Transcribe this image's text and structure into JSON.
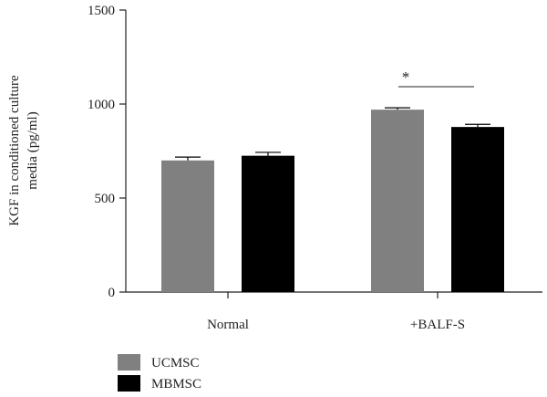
{
  "chart_data": {
    "type": "bar",
    "categories": [
      "Normal",
      "+BALF-S"
    ],
    "series": [
      {
        "name": "UCMSC",
        "values": [
          700,
          970
        ],
        "errors": [
          18,
          10
        ],
        "color": "#808080"
      },
      {
        "name": "MBMSC",
        "values": [
          725,
          878
        ],
        "errors": [
          18,
          14
        ],
        "color": "#000000"
      }
    ],
    "ylabel_lines": [
      "KGF in conditioned culture",
      "media (pg/ml)"
    ],
    "ylim": [
      0,
      1500
    ],
    "yticks": [
      0,
      500,
      1000,
      1500
    ],
    "grid": false,
    "legend_position": "bottom-left",
    "annotation": {
      "text": "*",
      "category": "+BALF-S"
    }
  }
}
